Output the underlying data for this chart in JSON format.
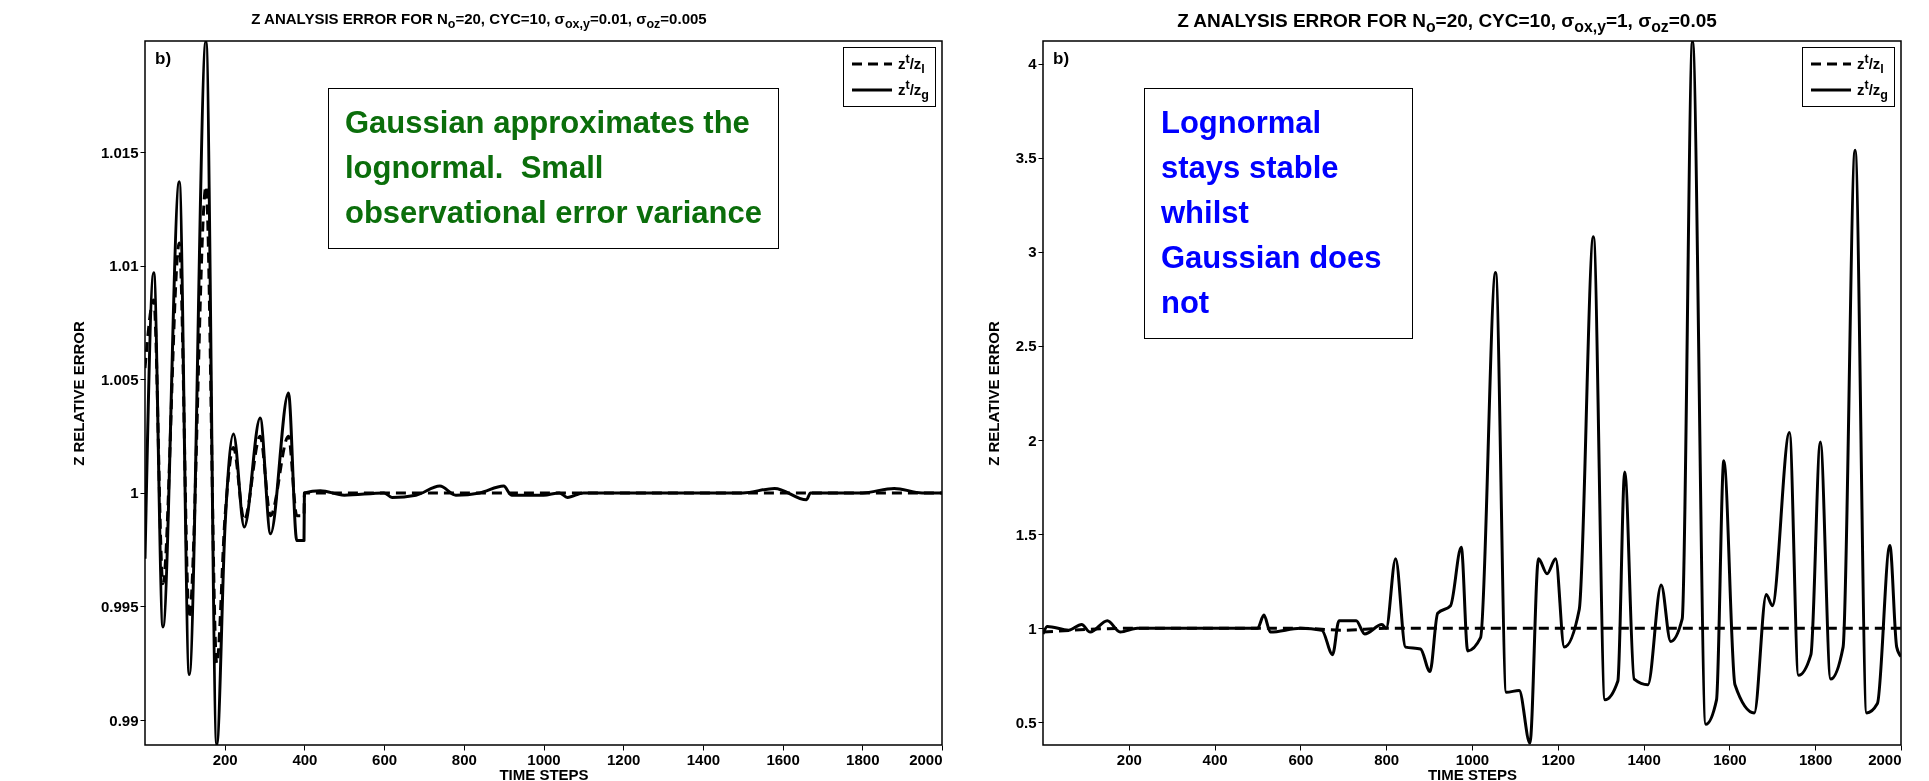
{
  "chart_data": [
    {
      "type": "line",
      "title": "Z ANALYSIS ERROR FOR N$_{o}$=20, CYC=10, σ$_{ox,y}$=0.01, σ$_{oz}$=0.005",
      "xlabel": "TIME STEPS",
      "ylabel": "Z RELATIVE ERROR",
      "xlim": [
        0,
        2000
      ],
      "ylim": [
        0.9889,
        1.0199
      ],
      "xticks": [
        200,
        400,
        600,
        800,
        1000,
        1200,
        1400,
        1600,
        1800,
        2000
      ],
      "yticks": [
        0.99,
        0.995,
        1,
        1.005,
        1.01,
        1.015
      ],
      "grid": false,
      "legend": "top right",
      "annotations": [
        "b)",
        "Gaussian approximates the lognormal.  Small observational error variance"
      ],
      "series": [
        {
          "name": "z$^{t}$/z$_{l}$",
          "color": "#000000",
          "line_style": "dashed",
          "x": [
            0,
            22,
            45,
            86,
            111,
            153,
            180,
            201,
            222,
            249,
            289,
            315,
            360,
            381,
            399,
            400,
            600,
            900,
            1200,
            1500,
            1800,
            2000
          ],
          "values": [
            1.0055,
            1.0085,
            0.996,
            1.011,
            0.9945,
            1.0135,
            0.9925,
            0.999,
            1.002,
            0.9988,
            1.0025,
            0.999,
            1.0025,
            0.999,
            0.999,
            1.0,
            1.0,
            1.0,
            1.0,
            1.0,
            1.0,
            1.0
          ]
        },
        {
          "name": "z$^{t}$/z$_{g}$",
          "color": "#000000",
          "line_style": "solid",
          "x": [
            0,
            22,
            45,
            86,
            111,
            153,
            180,
            201,
            222,
            249,
            289,
            315,
            360,
            381,
            399,
            400,
            440,
            500,
            600,
            620,
            680,
            740,
            780,
            840,
            900,
            920,
            1000,
            1040,
            1060,
            1100,
            1200,
            1300,
            1400,
            1500,
            1580,
            1660,
            1670,
            1800,
            1880,
            1950,
            2000
          ],
          "values": [
            0.9971,
            1.0097,
            0.9941,
            1.0137,
            0.992,
            1.0199,
            0.9889,
            0.9986,
            1.0026,
            0.9985,
            1.0033,
            0.9982,
            1.0044,
            0.9979,
            0.9979,
            1.0,
            1.0001,
            0.9999,
            1.0,
            0.9998,
            0.9999,
            1.0003,
            0.9999,
            1.0,
            1.0003,
            0.9999,
            0.9999,
            1.0,
            0.9998,
            1.0,
            1.0,
            1.0,
            1.0,
            1.0,
            1.0002,
            0.9997,
            1.0,
            1.0,
            1.0002,
            1.0,
            1.0
          ]
        }
      ]
    },
    {
      "type": "line",
      "title": "Z ANALYSIS ERROR FOR N$_{o}$=20, CYC=10, σ$_{ox,y}$=1, σ$_{oz}$=0.05",
      "xlabel": "TIME STEPS",
      "ylabel": "Z RELATIVE ERROR",
      "xlim": [
        0,
        2000
      ],
      "ylim": [
        0.38,
        4.12
      ],
      "xticks": [
        200,
        400,
        600,
        800,
        1000,
        1200,
        1400,
        1600,
        1800,
        2000
      ],
      "yticks": [
        0.5,
        1,
        1.5,
        2,
        2.5,
        3,
        3.5,
        4
      ],
      "grid": false,
      "legend": "top right",
      "annotations": [
        "b)",
        "Lognormal stays stable whilst Gaussian does not"
      ],
      "series": [
        {
          "name": "z$^{t}$/z$_{l}$",
          "color": "#000000",
          "line_style": "dashed",
          "x": [
            0,
            200,
            400,
            600,
            700,
            800,
            1000,
            1200,
            1400,
            1600,
            1800,
            2000
          ],
          "values": [
            0.98,
            1.0,
            1.0,
            1.0,
            0.99,
            1.0,
            1.0,
            1.0,
            1.0,
            1.0,
            1.0,
            1.0
          ]
        },
        {
          "name": "z$^{t}$/z$_{g}$",
          "color": "#000000",
          "line_style": "solid",
          "x": [
            0,
            10,
            60,
            90,
            110,
            150,
            180,
            220,
            500,
            515,
            530,
            600,
            650,
            675,
            690,
            730,
            750,
            790,
            800,
            822,
            845,
            880,
            902,
            920,
            950,
            975,
            990,
            1020,
            1055,
            1080,
            1110,
            1135,
            1155,
            1175,
            1195,
            1215,
            1250,
            1283,
            1310,
            1340,
            1356,
            1378,
            1410,
            1441,
            1463,
            1490,
            1514,
            1545,
            1570,
            1587,
            1613,
            1658,
            1686,
            1700,
            1740,
            1761,
            1790,
            1812,
            1836,
            1865,
            1893,
            1920,
            1945,
            1974,
            1990,
            2000
          ],
          "values": [
            0.97,
            1.01,
            0.99,
            1.02,
            0.98,
            1.04,
            0.98,
            1.0,
            1.0,
            1.07,
            0.98,
            1.0,
            0.99,
            0.86,
            1.04,
            1.04,
            0.97,
            1.02,
            1.0,
            1.37,
            0.9,
            0.89,
            0.77,
            1.08,
            1.12,
            1.43,
            0.88,
            0.95,
            2.89,
            0.66,
            0.67,
            0.39,
            1.37,
            1.29,
            1.37,
            0.9,
            1.1,
            3.08,
            0.62,
            0.72,
            1.83,
            0.73,
            0.7,
            1.23,
            0.93,
            1.05,
            4.12,
            0.49,
            0.62,
            1.89,
            0.7,
            0.55,
            1.18,
            1.12,
            2.04,
            0.75,
            0.86,
            1.99,
            0.73,
            0.9,
            3.54,
            0.55,
            0.6,
            1.44,
            0.9,
            0.85
          ]
        }
      ]
    }
  ]
}
